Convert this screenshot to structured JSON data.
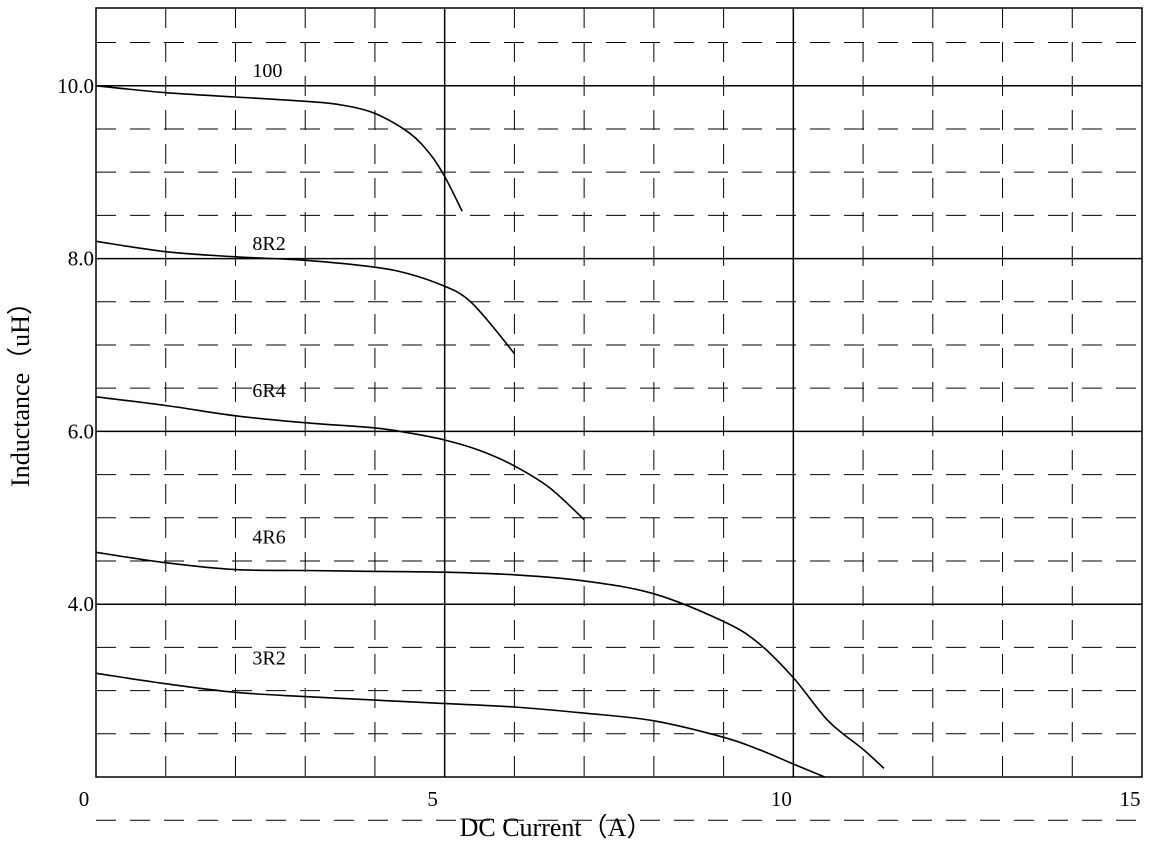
{
  "chart_data": {
    "type": "line",
    "title": "",
    "xlabel": "DC Current（A）",
    "ylabel": "Inductance（uH）",
    "xlim": [
      0,
      15
    ],
    "ylim": [
      2.0,
      10.9
    ],
    "x_ticks": [
      0,
      5,
      10,
      15
    ],
    "x_tick_labels": [
      "0",
      "5",
      "10",
      "15"
    ],
    "y_ticks": [
      4.0,
      6.0,
      8.0,
      10.0
    ],
    "y_tick_labels": [
      "4.0",
      "6.0",
      "8.0",
      "10.0"
    ],
    "grid": true,
    "grid_style": "solid major lines, dashed minor lines",
    "legend": "none (curves labeled inline)",
    "series": [
      {
        "name": "100",
        "label_at": [
          2.2,
          10.1
        ],
        "points": [
          [
            0,
            10.0
          ],
          [
            1,
            9.92
          ],
          [
            2,
            9.87
          ],
          [
            3,
            9.82
          ],
          [
            3.5,
            9.78
          ],
          [
            4,
            9.68
          ],
          [
            4.5,
            9.45
          ],
          [
            4.8,
            9.2
          ],
          [
            5,
            8.95
          ],
          [
            5.25,
            8.55
          ]
        ]
      },
      {
        "name": "8R2",
        "label_at": [
          2.2,
          8.1
        ],
        "points": [
          [
            0,
            8.2
          ],
          [
            1,
            8.08
          ],
          [
            2,
            8.02
          ],
          [
            3,
            7.98
          ],
          [
            4,
            7.9
          ],
          [
            4.5,
            7.82
          ],
          [
            5,
            7.68
          ],
          [
            5.3,
            7.55
          ],
          [
            5.6,
            7.3
          ],
          [
            6,
            6.9
          ]
        ]
      },
      {
        "name": "6R4",
        "label_at": [
          2.2,
          6.4
        ],
        "points": [
          [
            0,
            6.4
          ],
          [
            1,
            6.3
          ],
          [
            2,
            6.18
          ],
          [
            3,
            6.1
          ],
          [
            4,
            6.04
          ],
          [
            4.5,
            5.98
          ],
          [
            5,
            5.9
          ],
          [
            5.5,
            5.78
          ],
          [
            6,
            5.6
          ],
          [
            6.5,
            5.35
          ],
          [
            7,
            4.98
          ]
        ]
      },
      {
        "name": "4R6",
        "label_at": [
          2.2,
          4.7
        ],
        "points": [
          [
            0,
            4.6
          ],
          [
            1,
            4.48
          ],
          [
            2,
            4.4
          ],
          [
            3,
            4.39
          ],
          [
            4,
            4.38
          ],
          [
            5,
            4.37
          ],
          [
            6,
            4.34
          ],
          [
            7,
            4.27
          ],
          [
            8,
            4.12
          ],
          [
            9,
            3.8
          ],
          [
            9.5,
            3.55
          ],
          [
            10,
            3.15
          ],
          [
            10.5,
            2.65
          ],
          [
            11,
            2.32
          ],
          [
            11.3,
            2.1
          ]
        ]
      },
      {
        "name": "3R2",
        "label_at": [
          2.2,
          3.3
        ],
        "points": [
          [
            0,
            3.2
          ],
          [
            1,
            3.08
          ],
          [
            2,
            2.98
          ],
          [
            3,
            2.93
          ],
          [
            4,
            2.89
          ],
          [
            5,
            2.85
          ],
          [
            6,
            2.81
          ],
          [
            7,
            2.74
          ],
          [
            8,
            2.65
          ],
          [
            9,
            2.46
          ],
          [
            9.5,
            2.32
          ],
          [
            10,
            2.15
          ],
          [
            10.45,
            2.0
          ]
        ]
      }
    ]
  }
}
